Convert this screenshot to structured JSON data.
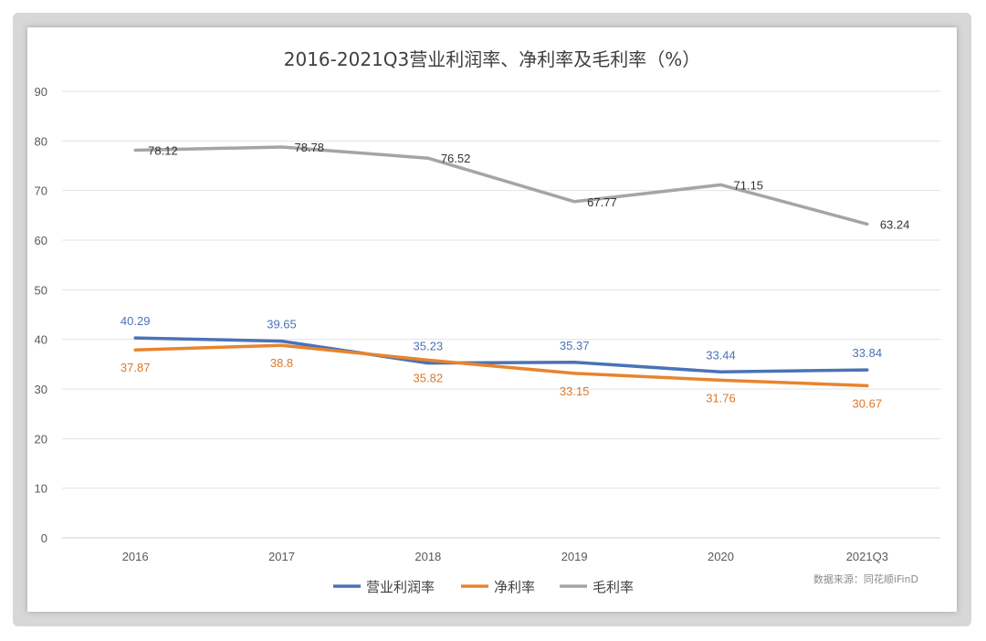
{
  "chart_data": {
    "type": "line",
    "title": "2016-2021Q3营业利润率、净利率及毛利率（%）",
    "categories": [
      "2016",
      "2017",
      "2018",
      "2019",
      "2020",
      "2021Q3"
    ],
    "ylim": [
      0,
      90
    ],
    "yticks": [
      0,
      10,
      20,
      30,
      40,
      50,
      60,
      70,
      80,
      90
    ],
    "grid": true,
    "legend_position": "bottom",
    "series": [
      {
        "name": "营业利润率",
        "color": "#4a73b7",
        "values": [
          40.29,
          39.65,
          35.23,
          35.37,
          33.44,
          33.84
        ],
        "label_color": "#4a73b7",
        "label_side": "above"
      },
      {
        "name": "净利率",
        "color": "#e8842e",
        "values": [
          37.87,
          38.8,
          35.82,
          33.15,
          31.76,
          30.67
        ],
        "label_color": "#d9782c",
        "label_side": "below"
      },
      {
        "name": "毛利率",
        "color": "#a5a5a5",
        "values": [
          78.12,
          78.78,
          76.52,
          67.77,
          71.15,
          63.24
        ],
        "label_color": "#333333",
        "label_side": "right"
      }
    ]
  },
  "source_note": "数据来源：同花顺iFinD"
}
